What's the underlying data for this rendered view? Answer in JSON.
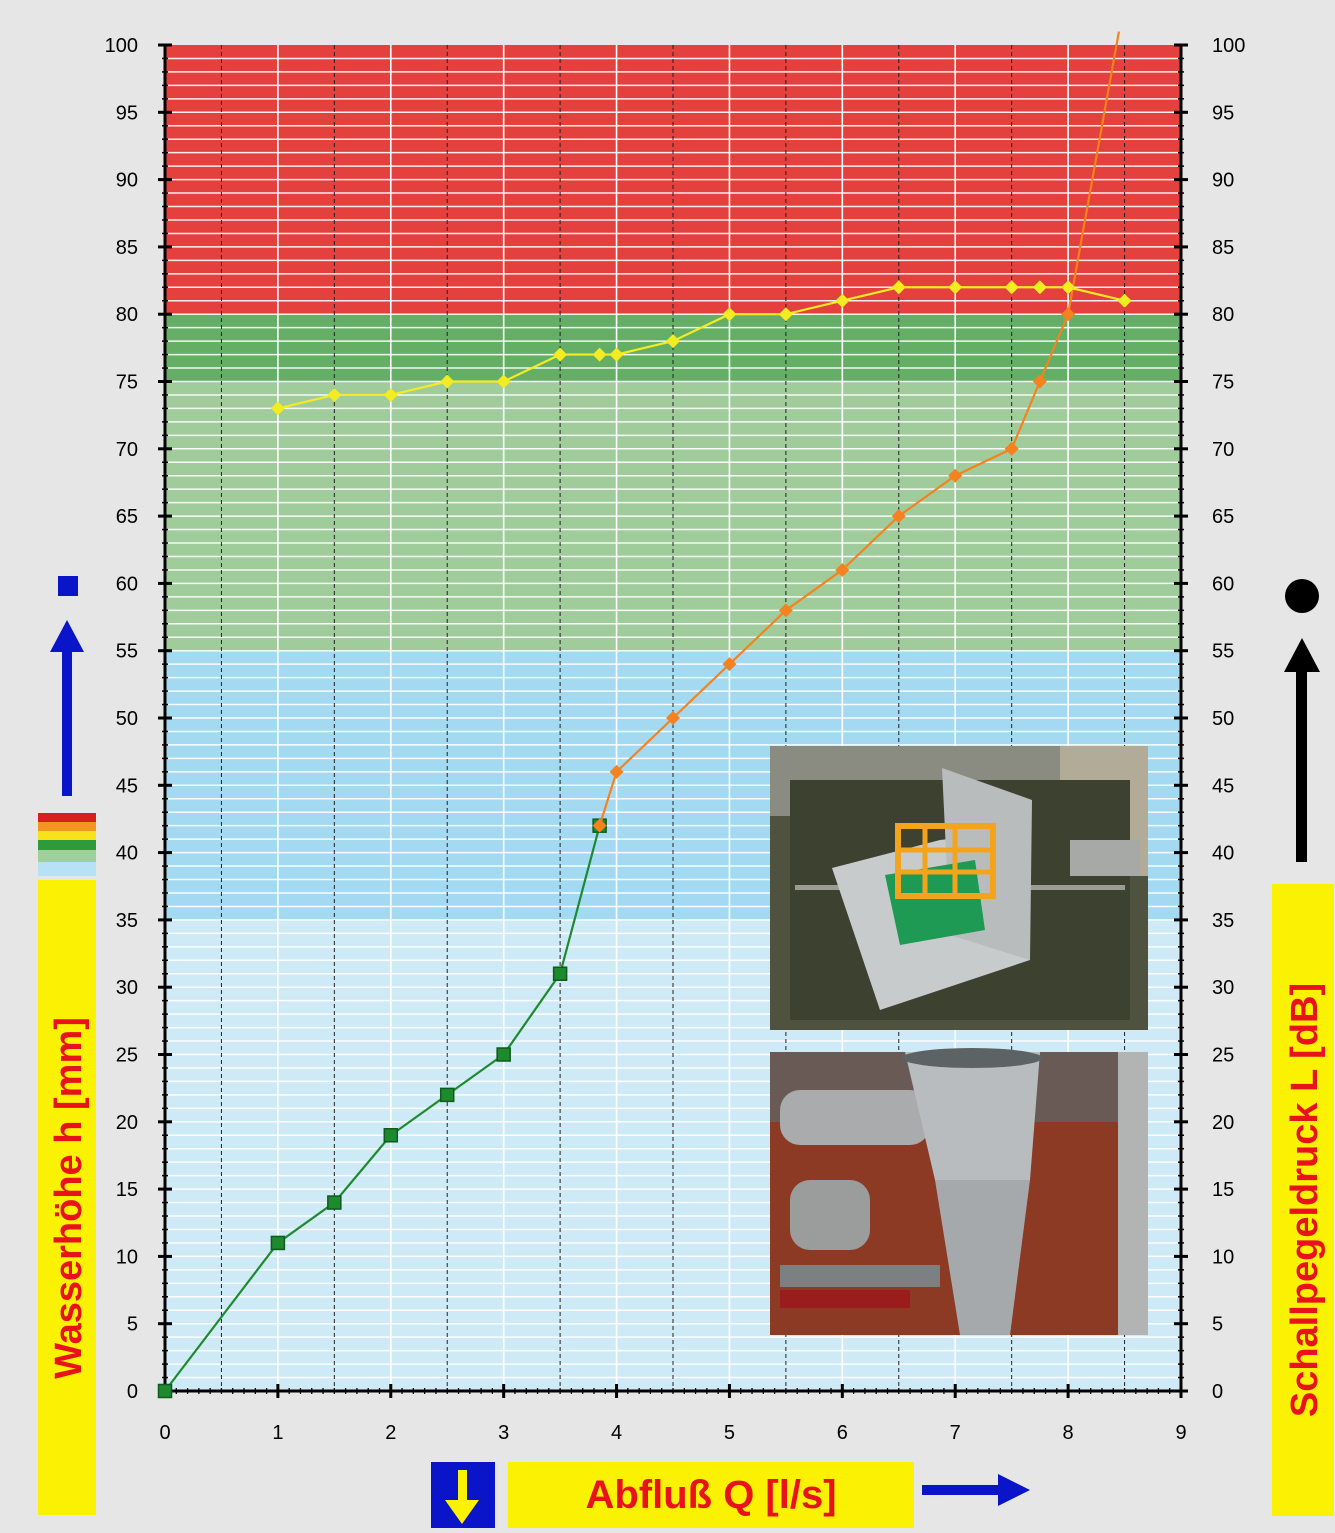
{
  "chart_data": {
    "type": "line",
    "xlabel": "Abfluß Q [l/s]",
    "ylabel": "Wasserhöhe h [mm]",
    "y2label": "Schallpegeldruck L [dB]",
    "xlim": [
      0,
      9
    ],
    "ylim": [
      0,
      100
    ],
    "y2lim": [
      0,
      100
    ],
    "xticks": [
      0,
      1,
      2,
      3,
      4,
      5,
      6,
      7,
      8,
      9
    ],
    "yticks": [
      0,
      5,
      10,
      15,
      20,
      25,
      30,
      35,
      40,
      45,
      50,
      55,
      60,
      65,
      70,
      75,
      80,
      85,
      90,
      95,
      100
    ],
    "grid": true,
    "background_bands": [
      {
        "from": 0,
        "to": 35,
        "color": "#cfeaf7"
      },
      {
        "from": 35,
        "to": 55,
        "color": "#a3daf2"
      },
      {
        "from": 55,
        "to": 75,
        "color": "#a0cc9c"
      },
      {
        "from": 75,
        "to": 80,
        "color": "#64ae66"
      },
      {
        "from": 80,
        "to": 100,
        "color": "#e4403d"
      }
    ],
    "series": [
      {
        "axis": "left",
        "marker": "square",
        "color": "#1d8a2e",
        "x": [
          0,
          1,
          1.5,
          2,
          2.5,
          3,
          3.5,
          3.85
        ],
        "y": [
          0,
          11,
          14,
          19,
          22,
          25,
          31,
          42
        ]
      },
      {
        "axis": "right",
        "marker": "diamond",
        "color": "#f5821f",
        "x": [
          3.85,
          4,
          4.5,
          5,
          5.5,
          6,
          6.5,
          7,
          7.5,
          7.75,
          8,
          8.45
        ],
        "y": [
          42,
          46,
          50,
          54,
          58,
          61,
          65,
          68,
          70,
          75,
          80,
          101
        ]
      },
      {
        "axis": "right",
        "marker": "diamond",
        "color": "#f4ec22",
        "x": [
          1,
          1.5,
          2,
          2.5,
          3,
          3.5,
          3.85,
          4,
          4.5,
          5,
          5.5,
          6,
          6.5,
          7,
          7.5,
          7.75,
          8,
          8.5
        ],
        "y": [
          73,
          74,
          74,
          75,
          75,
          77,
          77,
          77,
          78,
          80,
          80,
          81,
          82,
          82,
          82,
          82,
          82,
          81
        ]
      }
    ]
  },
  "icons": {
    "left_marker": "blue-square-icon",
    "right_marker": "black-circle-icon",
    "x_arrow": "yellow-down-arrow-icon",
    "photo_top": "trap-grate-photo",
    "photo_bottom": "pipe-fitting-photo"
  }
}
